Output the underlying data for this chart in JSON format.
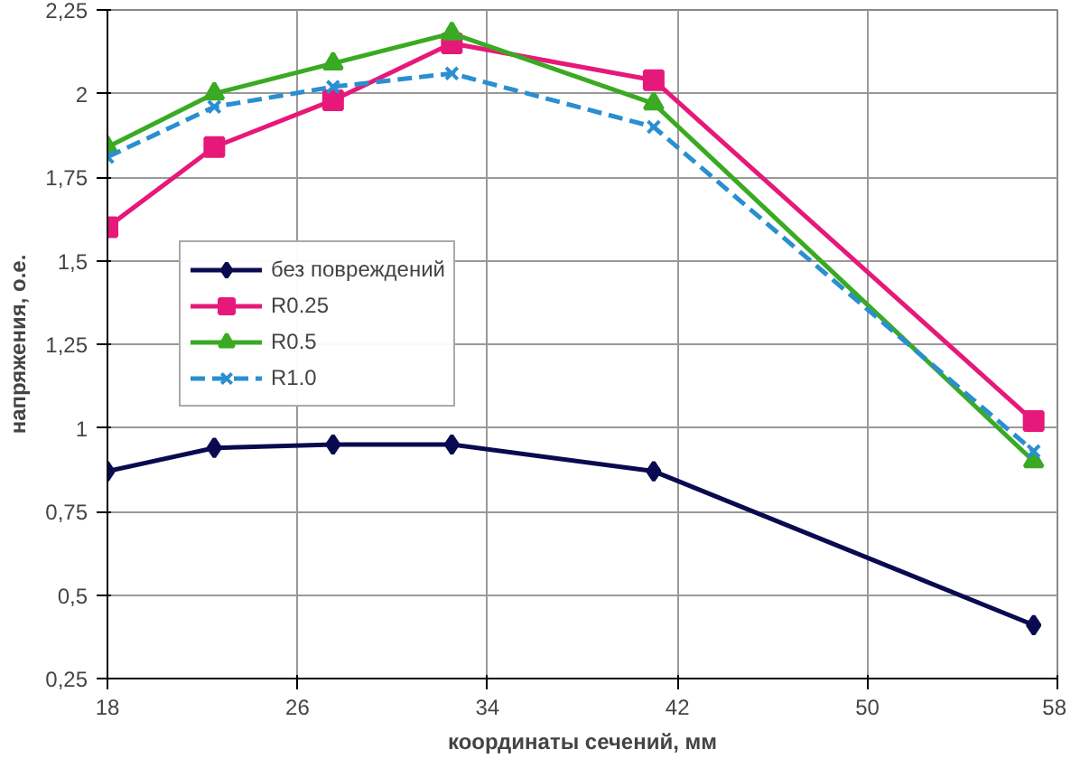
{
  "chart_data": {
    "type": "line",
    "xlabel": "координаты сечений, мм",
    "ylabel": "напряжения, о.е.",
    "x": [
      18,
      22.5,
      27.5,
      32.5,
      41,
      57
    ],
    "series": [
      {
        "name": "без повреждений",
        "color": "#0a0a50",
        "marker": "diamond",
        "line_style": "solid",
        "values": [
          0.87,
          0.94,
          0.95,
          0.95,
          0.87,
          0.41
        ]
      },
      {
        "name": "R0.25",
        "color": "#e6197a",
        "marker": "square",
        "line_style": "solid",
        "values": [
          1.6,
          1.84,
          1.98,
          2.15,
          2.04,
          1.02
        ]
      },
      {
        "name": "R0.5",
        "color": "#3aaa22",
        "marker": "triangle",
        "line_style": "solid",
        "values": [
          1.84,
          2.0,
          2.09,
          2.18,
          1.97,
          0.9
        ]
      },
      {
        "name": "R1.0",
        "color": "#2a8fd0",
        "marker": "cross",
        "line_style": "dashed",
        "values": [
          1.81,
          1.96,
          2.02,
          2.06,
          1.9,
          0.93
        ]
      }
    ],
    "xlim": [
      18,
      58
    ],
    "xticks": [
      18,
      26,
      34,
      42,
      50,
      58
    ],
    "ylim": [
      0.25,
      2.25
    ],
    "yticks": [
      {
        "value": 0.25,
        "label": "0,25"
      },
      {
        "value": 0.5,
        "label": "0,5"
      },
      {
        "value": 0.75,
        "label": "0,75"
      },
      1,
      {
        "value": 1.25,
        "label": "1,25"
      },
      {
        "value": 1.5,
        "label": "1,5"
      },
      {
        "value": 1.75,
        "label": "1,75"
      },
      2,
      {
        "value": 2.25,
        "label": "2,25"
      }
    ],
    "grid": true,
    "legend": "left"
  }
}
